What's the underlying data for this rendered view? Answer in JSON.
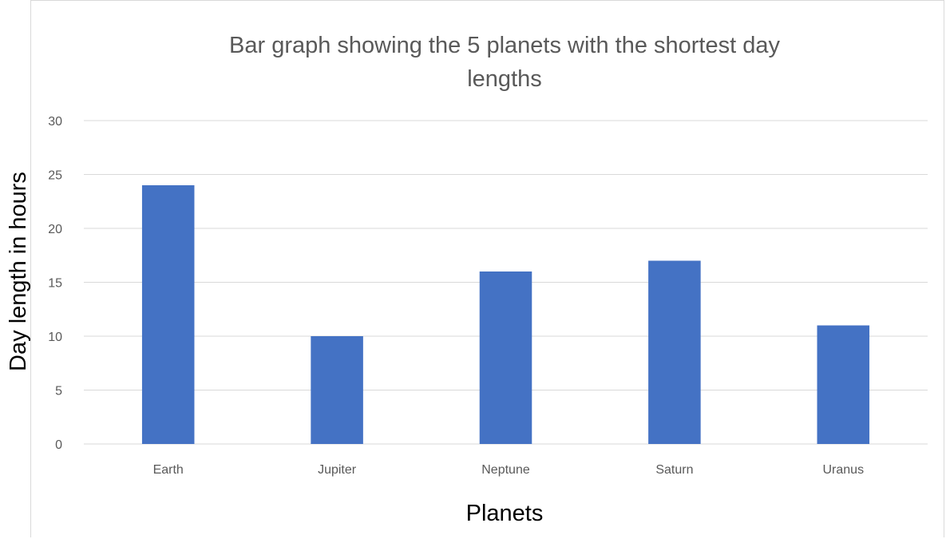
{
  "chart_data": {
    "type": "bar",
    "title": "Bar graph showing  the 5 planets with the shortest day lengths",
    "title_lines": [
      "Bar graph showing  the 5 planets with the shortest day",
      "lengths"
    ],
    "xlabel": "Planets",
    "ylabel": "Day length in hours",
    "categories": [
      "Earth",
      "Jupiter",
      "Neptune",
      "Saturn",
      "Uranus"
    ],
    "values": [
      24,
      10,
      16,
      17,
      11
    ],
    "ylim": [
      0,
      30
    ],
    "yticks": [
      "0",
      "5",
      "10",
      "15",
      "20",
      "25",
      "30"
    ],
    "grid": true,
    "legend": "none",
    "bar_color": "#4472c4"
  }
}
